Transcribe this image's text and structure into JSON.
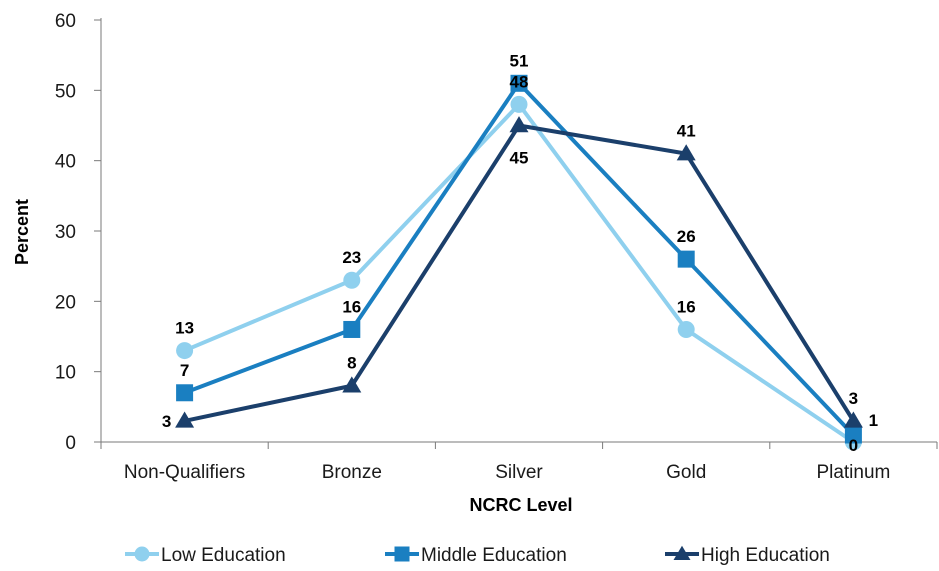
{
  "chart_data": {
    "type": "line",
    "title": "",
    "xlabel": "NCRC Level",
    "ylabel": "Percent",
    "ylim": [
      0,
      60
    ],
    "yticks": [
      0,
      10,
      20,
      30,
      40,
      50,
      60
    ],
    "categories": [
      "Non-Qualifiers",
      "Bronze",
      "Silver",
      "Gold",
      "Platinum"
    ],
    "grid": false,
    "legend_position": "bottom",
    "series": [
      {
        "name": "Low Education",
        "values": [
          13,
          23,
          48,
          16,
          0
        ],
        "color": "#8fd0ee",
        "marker": "circle"
      },
      {
        "name": "Middle Education",
        "values": [
          7,
          16,
          51,
          26,
          1
        ],
        "color": "#1a7fc1",
        "marker": "square"
      },
      {
        "name": "High Education",
        "values": [
          3,
          8,
          45,
          41,
          3
        ],
        "color": "#1b3f6b",
        "marker": "triangle"
      }
    ]
  }
}
